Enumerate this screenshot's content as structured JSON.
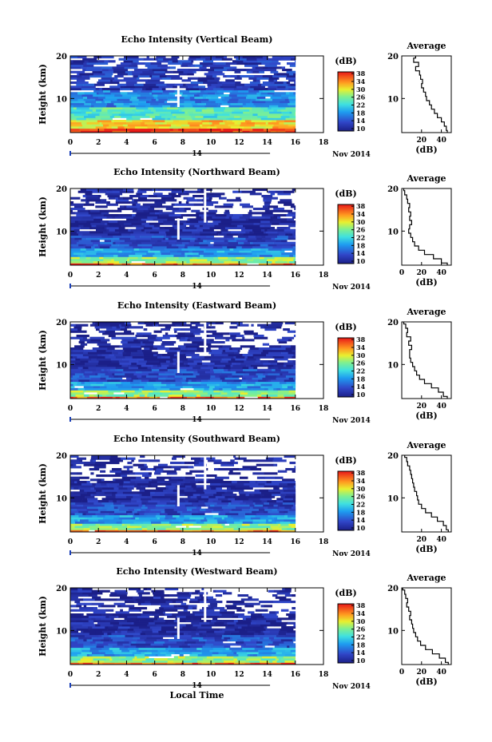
{
  "chart_data": [
    {
      "type": "heatmap",
      "title": "Echo Intensity (Vertical Beam)",
      "beam": "vertical",
      "ylabel": "Height (km)",
      "xlim": [
        0,
        18
      ],
      "ylim": [
        2,
        20
      ],
      "x_ticks": [
        "0",
        "2",
        "4",
        "6",
        "8",
        "10",
        "12",
        "14",
        "16",
        "18"
      ],
      "y_ticks": [
        "20",
        "10"
      ],
      "day_label": "14",
      "date_label": "Nov 2014",
      "colorbar": {
        "unit": "(dB)",
        "ticks": [
          "38",
          "34",
          "30",
          "26",
          "22",
          "18",
          "14",
          "10"
        ],
        "range": [
          10,
          38
        ]
      },
      "profile": {
        "title": "Average",
        "xlabel": "(dB)",
        "x_ticks": [
          "20",
          "40"
        ],
        "y_ticks": [
          "20",
          "10"
        ],
        "heights": [
          20,
          19,
          18,
          17,
          16,
          15,
          14,
          13,
          12,
          11,
          10,
          9,
          8,
          7,
          6,
          5,
          4,
          3,
          2
        ],
        "db": [
          14,
          12,
          17,
          14,
          18,
          19,
          21,
          20,
          22,
          24,
          25,
          28,
          30,
          33,
          36,
          40,
          43,
          45,
          46
        ]
      }
    },
    {
      "type": "heatmap",
      "title": "Echo Intensity (Northward Beam)",
      "beam": "northward",
      "ylabel": "Height (km)",
      "xlim": [
        0,
        18
      ],
      "ylim": [
        2,
        20
      ],
      "x_ticks": [
        "0",
        "2",
        "4",
        "6",
        "8",
        "10",
        "12",
        "14",
        "16",
        "18"
      ],
      "y_ticks": [
        "20",
        "10"
      ],
      "day_label": "14",
      "date_label": "Nov 2014",
      "colorbar": {
        "unit": "(dB)",
        "ticks": [
          "38",
          "34",
          "30",
          "26",
          "22",
          "18",
          "14",
          "10"
        ],
        "range": [
          10,
          38
        ]
      },
      "profile": {
        "title": "Average",
        "xlabel": "(dB)",
        "x_ticks": [
          "0",
          "20",
          "40"
        ],
        "y_ticks": [
          "20",
          "10"
        ],
        "heights": [
          20,
          19,
          18,
          17,
          16,
          15,
          14,
          13,
          12,
          11,
          10,
          9,
          8,
          7,
          6,
          5,
          4,
          3,
          2
        ],
        "db": [
          2,
          3,
          5,
          6,
          8,
          7,
          9,
          8,
          10,
          8,
          7,
          9,
          11,
          13,
          17,
          23,
          32,
          40,
          46
        ]
      }
    },
    {
      "type": "heatmap",
      "title": "Echo Intensity (Eastward Beam)",
      "beam": "eastward",
      "ylabel": "Height (km)",
      "xlim": [
        0,
        18
      ],
      "ylim": [
        2,
        20
      ],
      "x_ticks": [
        "0",
        "2",
        "4",
        "6",
        "8",
        "10",
        "12",
        "14",
        "16",
        "18"
      ],
      "y_ticks": [
        "20",
        "10"
      ],
      "day_label": "14",
      "date_label": "Nov 2014",
      "colorbar": {
        "unit": "(dB)",
        "ticks": [
          "38",
          "34",
          "30",
          "26",
          "22",
          "18",
          "14",
          "10"
        ],
        "range": [
          10,
          38
        ]
      },
      "profile": {
        "title": "Average",
        "xlabel": "(dB)",
        "x_ticks": [
          "20",
          "40"
        ],
        "y_ticks": [
          "20",
          "10"
        ],
        "heights": [
          20,
          19,
          18,
          17,
          16,
          15,
          14,
          13,
          12,
          11,
          10,
          9,
          8,
          7,
          6,
          5,
          4,
          3,
          2
        ],
        "db": [
          2,
          4,
          6,
          5,
          9,
          7,
          10,
          8,
          8,
          9,
          11,
          13,
          15,
          18,
          23,
          30,
          37,
          42,
          46
        ]
      }
    },
    {
      "type": "heatmap",
      "title": "Echo Intensity (Southward Beam)",
      "beam": "southward",
      "ylabel": "Height (km)",
      "xlim": [
        0,
        18
      ],
      "ylim": [
        2,
        20
      ],
      "x_ticks": [
        "0",
        "2",
        "4",
        "6",
        "8",
        "10",
        "12",
        "14",
        "16",
        "18"
      ],
      "y_ticks": [
        "20",
        "10"
      ],
      "day_label": "14",
      "date_label": "Nov 2014",
      "colorbar": {
        "unit": "(dB)",
        "ticks": [
          "38",
          "34",
          "30",
          "26",
          "22",
          "18",
          "14",
          "10"
        ],
        "range": [
          10,
          38
        ]
      },
      "profile": {
        "title": "Average",
        "xlabel": "(dB)",
        "x_ticks": [
          "20",
          "40"
        ],
        "y_ticks": [
          "20",
          "10"
        ],
        "heights": [
          20,
          19,
          18,
          17,
          16,
          15,
          14,
          13,
          12,
          11,
          10,
          9,
          8,
          7,
          6,
          5,
          4,
          3,
          2
        ],
        "db": [
          3,
          5,
          6,
          8,
          9,
          10,
          11,
          12,
          13,
          15,
          16,
          17,
          20,
          24,
          30,
          36,
          42,
          45,
          47
        ]
      }
    },
    {
      "type": "heatmap",
      "title": "Echo Intensity (Westward Beam)",
      "beam": "westward",
      "ylabel": "Height (km)",
      "xlabel": "Local Time",
      "xlim": [
        0,
        18
      ],
      "ylim": [
        2,
        20
      ],
      "x_ticks": [
        "0",
        "2",
        "4",
        "6",
        "8",
        "10",
        "12",
        "14",
        "16",
        "18"
      ],
      "y_ticks": [
        "20",
        "10"
      ],
      "day_label": "14",
      "date_label": "Nov 2014",
      "colorbar": {
        "unit": "(dB)",
        "ticks": [
          "38",
          "34",
          "30",
          "26",
          "22",
          "18",
          "14",
          "10"
        ],
        "range": [
          10,
          38
        ]
      },
      "profile": {
        "title": "Average",
        "xlabel": "(dB)",
        "x_ticks": [
          "0",
          "20",
          "40"
        ],
        "y_ticks": [
          "20",
          "10"
        ],
        "heights": [
          20,
          19,
          18,
          17,
          16,
          15,
          14,
          13,
          12,
          11,
          10,
          9,
          8,
          7,
          6,
          5,
          4,
          3,
          2
        ],
        "db": [
          1,
          3,
          4,
          6,
          5,
          7,
          9,
          8,
          10,
          11,
          12,
          14,
          16,
          19,
          24,
          31,
          38,
          44,
          47
        ]
      }
    }
  ]
}
